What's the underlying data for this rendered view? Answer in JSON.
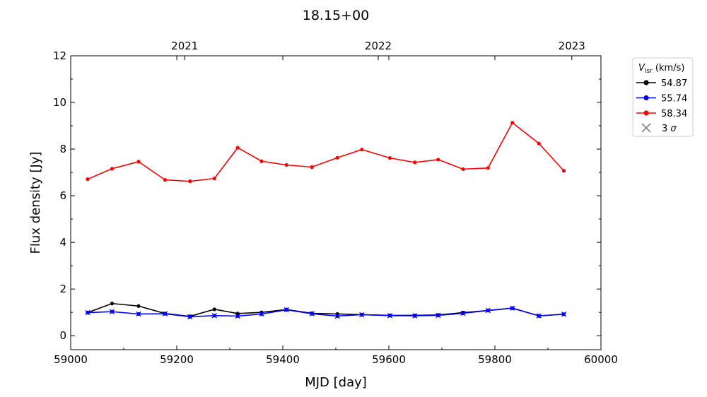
{
  "chart_data": {
    "type": "line",
    "title": "18.15+00",
    "xlabel": "MJD [day]",
    "ylabel": "Flux density [Jy]",
    "xlim": [
      59000,
      60000
    ],
    "ylim": [
      -0.6,
      12
    ],
    "x_ticks": [
      "59000",
      "59200",
      "59400",
      "59600",
      "59800",
      "60000"
    ],
    "y_ticks": [
      "0",
      "2",
      "4",
      "6",
      "8",
      "10",
      "12"
    ],
    "top_axis": {
      "ticks": [
        {
          "mjd": 59215,
          "label": "2021"
        },
        {
          "mjd": 59580,
          "label": "2022"
        },
        {
          "mjd": 59945,
          "label": "2023"
        }
      ]
    },
    "grid": false,
    "legend": {
      "placement": "outside-right",
      "title": "V_lsr (km/s)",
      "title_main": "V",
      "title_sub": "lsr",
      "title_rest": " (km/s)",
      "sigma_label": "3 σ",
      "sigma_num": "3",
      "sigma_sym": "σ"
    },
    "x": [
      59032,
      59078,
      59128,
      59178,
      59225,
      59271,
      59315,
      59360,
      59407,
      59455,
      59503,
      59549,
      59602,
      59649,
      59693,
      59740,
      59787,
      59833,
      59883,
      59930
    ],
    "series": [
      {
        "name": "54.87",
        "color": "#000000",
        "values": [
          0.99,
          1.38,
          1.27,
          0.95,
          0.83,
          1.13,
          0.95,
          1.0,
          1.12,
          0.96,
          0.93,
          0.9,
          0.87,
          0.87,
          0.89,
          0.99,
          1.08,
          1.18,
          0.85,
          0.92
        ]
      },
      {
        "name": "55.74",
        "color": "#0000ff",
        "values": [
          0.99,
          1.03,
          0.93,
          0.94,
          0.81,
          0.86,
          0.84,
          0.93,
          1.11,
          0.94,
          0.84,
          0.9,
          0.86,
          0.85,
          0.87,
          0.96,
          1.08,
          1.18,
          0.85,
          0.92
        ]
      },
      {
        "name": "58.34",
        "color": "#ff0000",
        "values": [
          6.71,
          7.16,
          7.46,
          6.68,
          6.62,
          6.74,
          8.06,
          7.48,
          7.32,
          7.23,
          7.63,
          7.98,
          7.62,
          7.43,
          7.55,
          7.14,
          7.19,
          9.13,
          8.24,
          7.07
        ]
      }
    ],
    "sigma_marker_color": "#808080",
    "sigma_values": [
      0.99,
      1.03,
      0.93,
      0.94,
      0.81,
      0.86,
      0.84,
      0.93,
      1.11,
      0.94,
      0.84,
      0.9,
      0.86,
      0.85,
      0.87,
      0.96,
      1.08,
      1.18,
      0.85,
      0.92
    ]
  }
}
